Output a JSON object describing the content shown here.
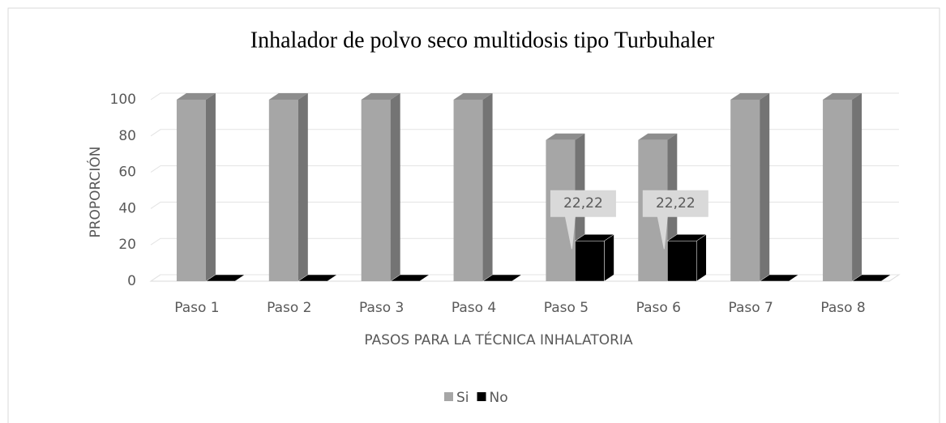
{
  "chart_data": {
    "type": "bar3d",
    "title": "Inhalador de polvo seco multidosis tipo Turbuhaler",
    "x_label": "PASOS PARA LA TÉCNICA INHALATORIA",
    "y_label": "PROPORCIÓN",
    "categories": [
      "Paso 1",
      "Paso 2",
      "Paso 3",
      "Paso 4",
      "Paso 5",
      "Paso 6",
      "Paso 7",
      "Paso 8"
    ],
    "series": [
      {
        "name": "Si",
        "color": "#a6a6a6",
        "values": [
          100,
          100,
          100,
          100,
          77.78,
          77.78,
          100,
          100
        ]
      },
      {
        "name": "No",
        "color": "#000000",
        "values": [
          0,
          0,
          0,
          0,
          22.22,
          22.22,
          0,
          0
        ],
        "value_labels": [
          null,
          null,
          null,
          null,
          "22,22",
          "22,22",
          null,
          null
        ]
      }
    ],
    "ylim": [
      0,
      100
    ],
    "yticks": [
      0,
      20,
      40,
      60,
      80,
      100
    ],
    "grid": true,
    "legend": "bottom"
  }
}
